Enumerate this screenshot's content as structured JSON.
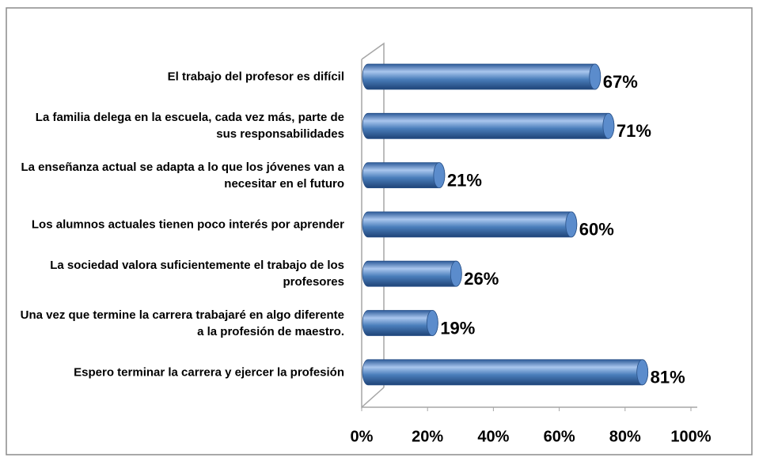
{
  "chart_data": {
    "type": "bar",
    "orientation": "horizontal",
    "categories": [
      "El trabajo del profesor es difícil",
      "La familia delega en la escuela, cada vez más, parte de sus responsabilidades",
      "La enseñanza actual  se adapta a lo que los jóvenes van a necesitar en el futuro",
      "Los alumnos actuales tienen poco interés por aprender",
      "La sociedad valora suficientemente el trabajo de los profesores",
      "Una vez que termine la carrera trabajaré en algo diferente a la profesión de maestro.",
      "Espero  terminar la carrera y ejercer la profesión"
    ],
    "values": [
      67,
      71,
      21,
      60,
      26,
      19,
      81
    ],
    "value_labels": [
      "67%",
      "71%",
      "21%",
      "60%",
      "26%",
      "19%",
      "81%"
    ],
    "color": "#4a7ebb",
    "xlim": [
      0,
      100
    ],
    "xticks": [
      {
        "value": 0,
        "label": "0%"
      },
      {
        "value": 20,
        "label": "20%"
      },
      {
        "value": 40,
        "label": "40%"
      },
      {
        "value": 60,
        "label": "60%"
      },
      {
        "value": 80,
        "label": "80%"
      },
      {
        "value": 100,
        "label": "100%"
      }
    ]
  }
}
